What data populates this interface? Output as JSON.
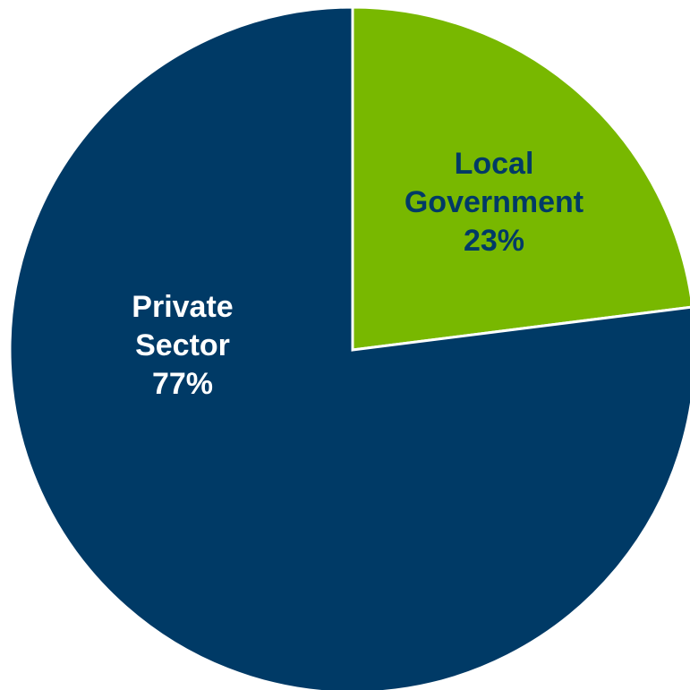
{
  "chart_data": {
    "type": "pie",
    "title": "",
    "slices": [
      {
        "name": "Local Government",
        "label_lines": [
          "Local",
          "Government"
        ],
        "percent_label": "23%",
        "value": 23,
        "color": "#78B800",
        "label_color": "#003A66"
      },
      {
        "name": "Private Sector",
        "label_lines": [
          "Private",
          "Sector"
        ],
        "percent_label": "77%",
        "value": 77,
        "color": "#003A66",
        "label_color": "#ffffff"
      }
    ],
    "start_angle_deg": 0,
    "direction": "clockwise",
    "slice_border_color": "#ffffff",
    "legend": "none"
  }
}
